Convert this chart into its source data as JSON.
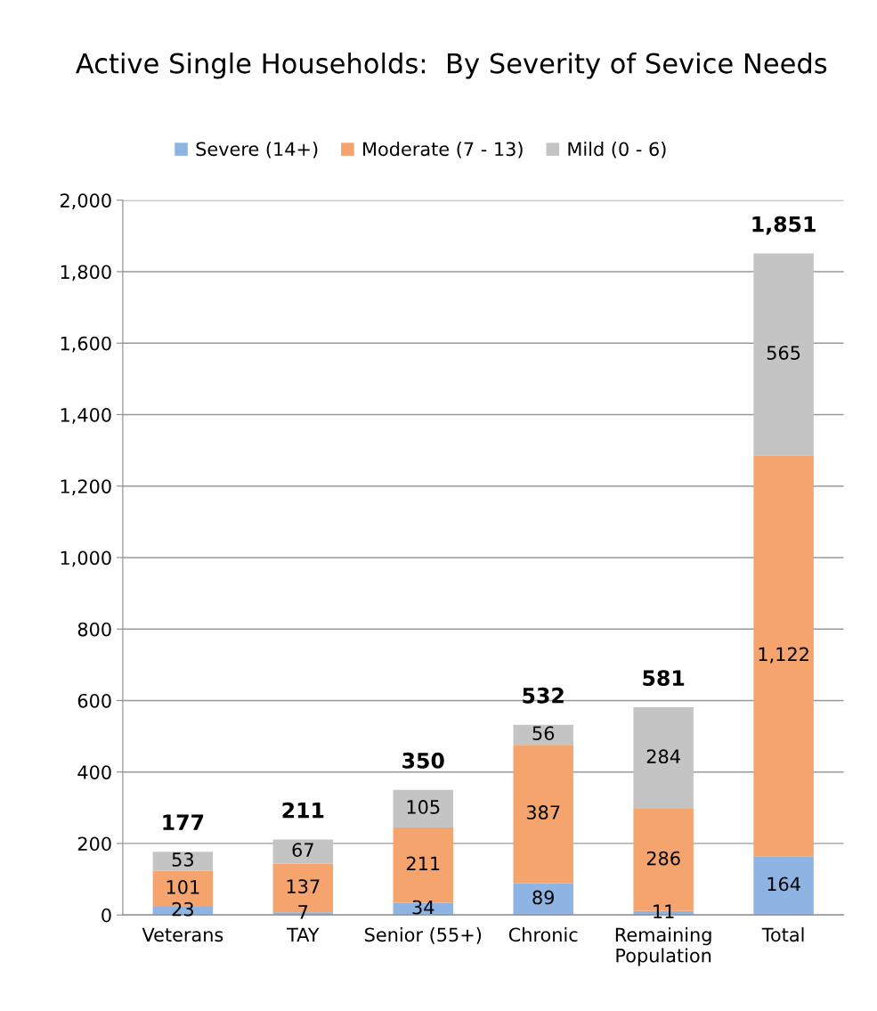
{
  "chart_data": {
    "type": "bar",
    "stacked": true,
    "title": "Active Single Households:  By Severity of Sevice Needs",
    "categories": [
      "Veterans",
      "TAY",
      "Senior (55+)",
      "Chronic",
      "Remaining Population",
      "Total"
    ],
    "series": [
      {
        "name": "Severe (14+)",
        "color": "#8db4e2",
        "values": [
          23,
          7,
          34,
          89,
          11,
          164
        ],
        "value_labels": [
          "23",
          "7",
          "34",
          "89",
          "11",
          "164"
        ]
      },
      {
        "name": "Moderate (7 - 13)",
        "color": "#f4a46c",
        "values": [
          101,
          137,
          211,
          387,
          286,
          1122
        ],
        "value_labels": [
          "101",
          "137",
          "211",
          "387",
          "286",
          "1,122"
        ]
      },
      {
        "name": "Mild (0 - 6)",
        "color": "#c4c4c4",
        "values": [
          53,
          67,
          105,
          56,
          284,
          565
        ],
        "value_labels": [
          "53",
          "67",
          "105",
          "56",
          "284",
          "565"
        ]
      }
    ],
    "ylim": [
      0,
      2000
    ],
    "yticks": [
      0,
      200,
      400,
      600,
      800,
      {
        "value": 1000,
        "label": "1,000"
      },
      {
        "value": 1200,
        "label": "1,200"
      },
      {
        "value": 1400,
        "label": "1,400"
      },
      {
        "value": 1600,
        "label": "1,600"
      },
      {
        "value": 1800,
        "label": "1,800"
      },
      {
        "value": 2000,
        "label": "2,000"
      }
    ],
    "grid": "y",
    "legend": "top",
    "totals": [
      "177",
      "211",
      "350",
      "532",
      "581",
      "1,851"
    ]
  }
}
